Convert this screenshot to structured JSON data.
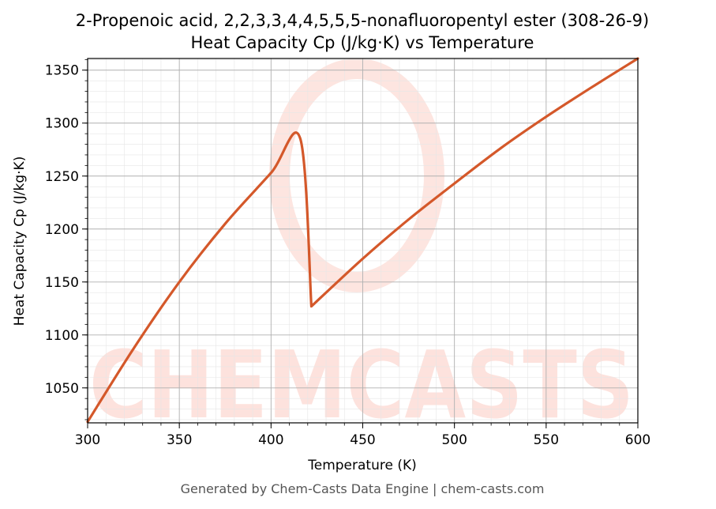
{
  "chart_data": {
    "type": "line",
    "title_line1": "2-Propenoic acid, 2,2,3,3,4,4,5,5,5-nonafluoropentyl ester (308-26-9)",
    "title_line2": "Heat Capacity Cp (J/kg·K) vs Temperature",
    "xlabel": "Temperature (K)",
    "ylabel": "Heat Capacity Cp (J/kg·K)",
    "xlim": [
      300,
      600
    ],
    "ylim": [
      1017,
      1361
    ],
    "xticks": [
      300,
      350,
      400,
      450,
      500,
      550,
      600
    ],
    "yticks": [
      1050,
      1100,
      1150,
      1200,
      1250,
      1300,
      1350
    ],
    "grid": true,
    "line_color": "#d4582a",
    "series": [
      {
        "x": [
          300,
          325,
          350,
          375,
          400,
          416,
          422,
          450,
          475,
          500,
          525,
          550,
          575,
          600
        ],
        "y": [
          1018,
          1087,
          1150,
          1205,
          1253,
          1285,
          1127,
          1172,
          1209,
          1243,
          1276,
          1306,
          1334,
          1361
        ]
      }
    ]
  },
  "watermark": {
    "text": "CHEMCASTS",
    "color": "#fde2dd"
  },
  "footer": "Generated by Chem-Casts Data Engine | chem-casts.com"
}
